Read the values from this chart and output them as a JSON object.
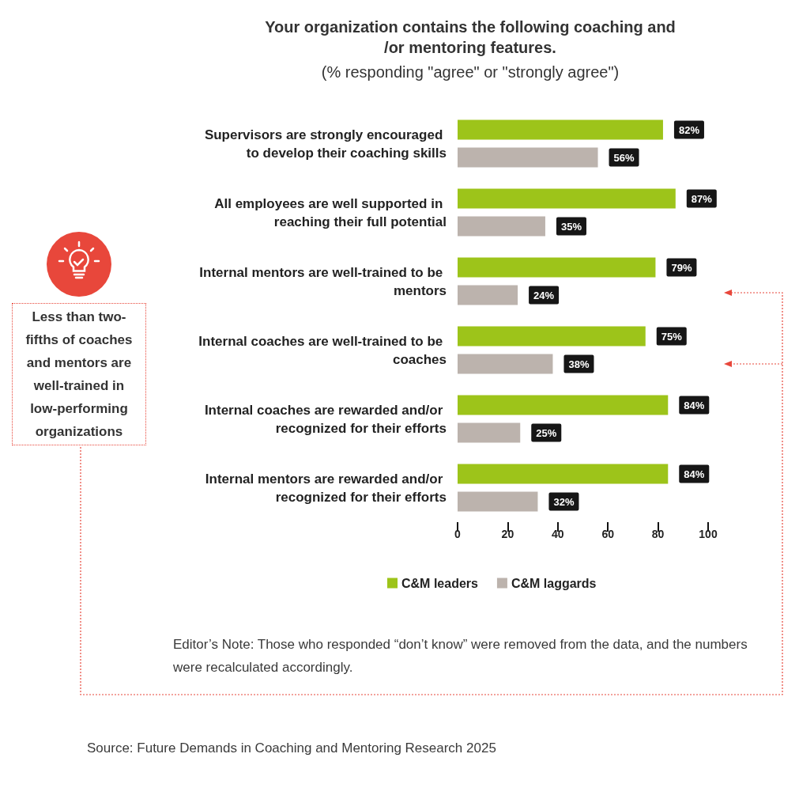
{
  "chart_data": {
    "type": "bar",
    "orientation": "horizontal",
    "title": "Your organization contains the following coaching and/or mentoring features.",
    "subtitle": "(% responding \"agree\" or \"strongly agree\")",
    "categories": [
      "Supervisors are strongly encouraged to develop their coaching skills",
      "All employees are well supported in reaching their full potential",
      "Internal mentors are well-trained to be mentors",
      "Internal coaches are well-trained to be coaches",
      "Internal coaches are rewarded and/or recognized for their efforts",
      "Internal mentors are rewarded and/or recognized for their efforts"
    ],
    "series": [
      {
        "name": "C&M leaders",
        "color": "#9dc41a",
        "values": [
          82,
          87,
          79,
          75,
          84,
          84
        ],
        "value_labels": [
          "82%",
          "87%",
          "79%",
          "75%",
          "84%",
          "84%"
        ]
      },
      {
        "name": "C&M laggards",
        "color": "#bcb3ad",
        "values": [
          56,
          35,
          24,
          38,
          25,
          32
        ],
        "value_labels": [
          "56%",
          "35%",
          "24%",
          "38%",
          "25%",
          "32%"
        ]
      }
    ],
    "xlim": [
      0,
      100
    ],
    "xticks": [
      0,
      20,
      40,
      60,
      80,
      100
    ],
    "grid": false,
    "legend": "bottom",
    "annotations": [
      "Less than two-fifths of coaches and mentors are well-trained in low-performing organizations",
      "Editor’s Note: Those who responded “don’t know” were removed from the data, and the numbers were recalculated accordingly.",
      "Source:  Future Demands in Coaching and Mentoring Research 2025"
    ]
  }
}
